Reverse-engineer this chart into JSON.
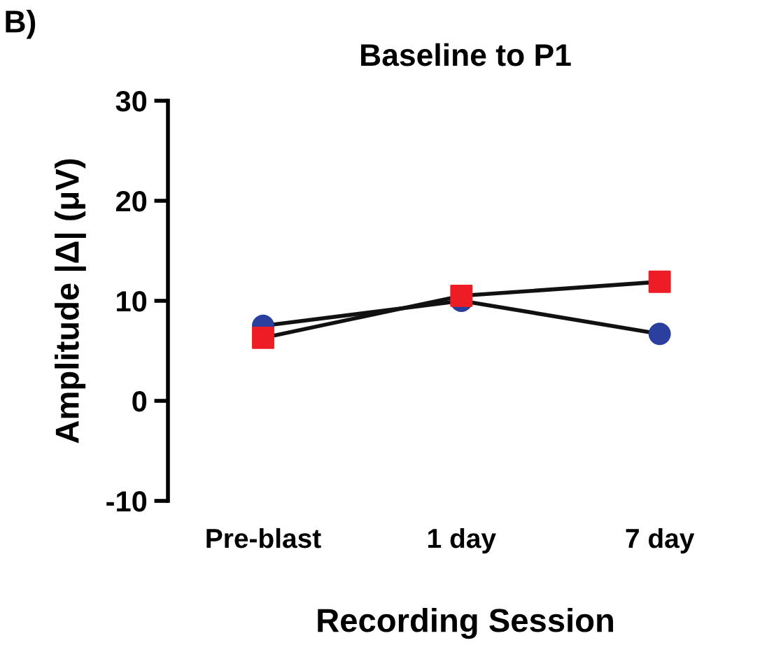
{
  "chart_data": {
    "type": "line",
    "title": "Baseline to P1",
    "xlabel": "Recording Session",
    "ylabel": "Amplitude |Δ| (μV)",
    "annotations": [
      "B)"
    ],
    "categories": [
      "Pre-blast",
      "1 day",
      "7 day"
    ],
    "series": [
      {
        "color": "#2b3f9e",
        "marker": "circle",
        "values": [
          7.5,
          10.0,
          6.7
        ]
      },
      {
        "color": "#ee1c25",
        "marker": "square",
        "values": [
          6.3,
          10.5,
          11.9
        ]
      }
    ],
    "ylim": [
      -10,
      30
    ],
    "yticks": [
      -10,
      0,
      10,
      20,
      30
    ],
    "grid": false
  }
}
